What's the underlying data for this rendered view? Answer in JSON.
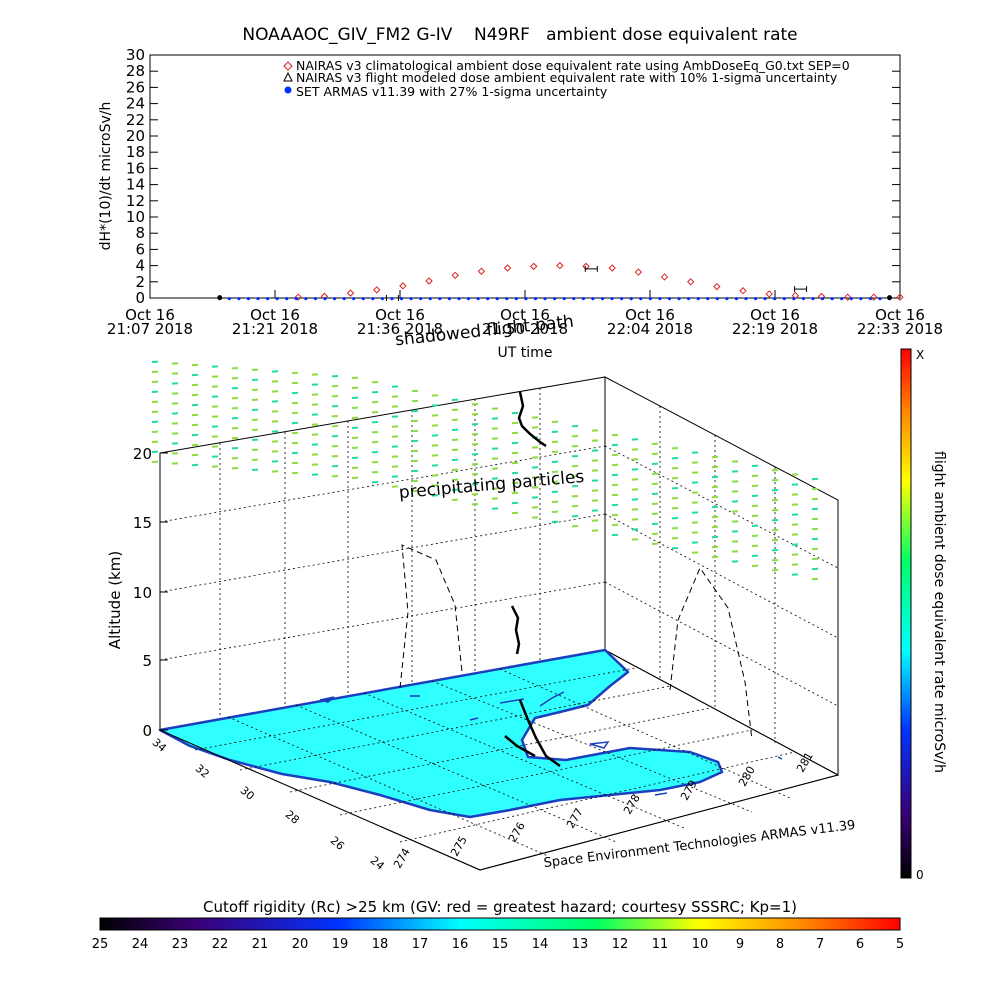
{
  "colors": {
    "ocean": "#30ffff",
    "coast": "#1a3fbf",
    "nairas_clim": "#dd2222",
    "armas": "#0030ff",
    "dose_cloud_a": "#88dd44",
    "dose_cloud_b": "#22dd99"
  },
  "icons": {
    "legend_diamond": "diamond-marker",
    "legend_triangle": "triangle-marker",
    "legend_dot": "filled-dot-marker"
  },
  "chart_data": [
    {
      "type": "line",
      "title": "NOAAAOC_GIV_FM2 G-IV    N49RF   ambient dose equivalent rate",
      "ylabel": "dH*(10)/dt microSv/h",
      "xlabel": "UT time",
      "ylim": [
        0,
        30
      ],
      "yticks": [
        "0",
        "2",
        "4",
        "6",
        "8",
        "10",
        "12",
        "14",
        "16",
        "18",
        "20",
        "22",
        "24",
        "26",
        "28",
        "30"
      ],
      "xticks": [
        {
          "date": "Oct 16",
          "time": "21:07 2018"
        },
        {
          "date": "Oct 16",
          "time": "21:21 2018"
        },
        {
          "date": "Oct 16",
          "time": "21:36 2018"
        },
        {
          "date": "Oct 16",
          "time": "21:50 2018"
        },
        {
          "date": "Oct 16",
          "time": "22:04 2018"
        },
        {
          "date": "Oct 16",
          "time": "22:19 2018"
        },
        {
          "date": "Oct 16",
          "time": "22:33 2018"
        }
      ],
      "legend_position": "top-right",
      "legend": [
        "NAIRAS v3 climatological ambient dose equivalent rate using AmbDoseEq_G0.txt SEP=0",
        "NAIRAS v3 flight modeled dose ambient equivalent rate with 10% 1-sigma uncertainty",
        "SET ARMAS v11.39 with 27% 1-sigma uncertainty"
      ],
      "series": [
        {
          "name": "NAIRAS v3 climatological ambient dose equivalent rate using AmbDoseEq_G0.txt SEP=0",
          "marker": "diamond",
          "x": [
            21.4,
            21.45,
            21.5,
            21.55,
            21.6,
            21.65,
            21.7,
            21.75,
            21.8,
            21.85,
            21.9,
            21.95,
            22.0,
            22.05,
            22.1,
            22.15,
            22.2,
            22.25,
            22.3,
            22.35,
            22.4,
            22.45,
            22.5,
            22.55
          ],
          "y": [
            0.1,
            0.2,
            0.6,
            1.0,
            1.5,
            2.1,
            2.8,
            3.3,
            3.7,
            3.9,
            4.0,
            3.9,
            3.7,
            3.2,
            2.6,
            2.0,
            1.4,
            0.9,
            0.5,
            0.3,
            0.2,
            0.1,
            0.1,
            0.1
          ]
        },
        {
          "name": "NAIRAS v3 flight modeled dose ambient equivalent rate with 10% 1-sigma uncertainty",
          "marker": "triangle",
          "x": [
            21.58,
            21.96,
            22.36
          ],
          "y": [
            0.0,
            3.6,
            1.1
          ]
        },
        {
          "name": "SET ARMAS v11.39 with 27% 1-sigma uncertainty",
          "marker": "dot",
          "x_range": [
            21.25,
            22.53
          ],
          "y": 0.05
        }
      ],
      "annotations": [
        "shadowed flight path"
      ]
    },
    {
      "type": "scatter",
      "zlabel": "Altitude (km)",
      "zlim": [
        0,
        20
      ],
      "zticks": [
        "0",
        "5",
        "10",
        "15",
        "20"
      ],
      "lat_ticks": [
        "34",
        "32",
        "30",
        "28",
        "26",
        "24"
      ],
      "lon_ticks": [
        "274",
        "275",
        "276",
        "277",
        "278",
        "279",
        "280",
        "281"
      ],
      "annotations": [
        "precipitating particles"
      ],
      "credit": "Space Environment Technologies ARMAS v11.39",
      "colorbar": {
        "label": "flight ambient dose equivalent rate microSv/h",
        "min_label": "0",
        "max_label": "X"
      }
    },
    {
      "type": "heatmap",
      "title": "Cutoff rigidity (Rc) >25 km (GV: red = greatest hazard; courtesy SSSRC; Kp=1)",
      "ticks": [
        "25",
        "24",
        "23",
        "22",
        "21",
        "20",
        "19",
        "18",
        "17",
        "16",
        "15",
        "14",
        "13",
        "12",
        "11",
        "10",
        "9",
        "8",
        "7",
        "6",
        "5"
      ]
    }
  ]
}
